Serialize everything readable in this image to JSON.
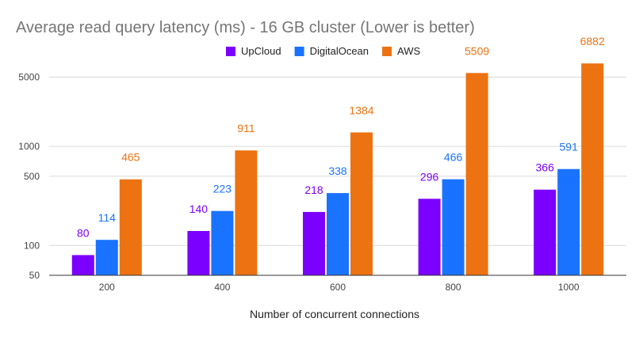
{
  "chart_data": {
    "type": "bar",
    "title": "Average read query latency (ms) - 16 GB cluster (Lower is better)",
    "xlabel": "Number of concurrent connections",
    "ylabel": "",
    "y_scale": "log",
    "ylim": [
      50,
      8000
    ],
    "y_ticks": [
      50,
      100,
      500,
      1000,
      5000
    ],
    "y_tick_labels": [
      "50",
      "100",
      "500",
      "1000",
      "5000"
    ],
    "grid": true,
    "legend_position": "top-center",
    "categories": [
      "200",
      "400",
      "600",
      "800",
      "1000"
    ],
    "series": [
      {
        "name": "UpCloud",
        "color": "#7b00ff",
        "values": [
          80,
          140,
          218,
          296,
          366
        ],
        "labels": [
          "80",
          "140",
          "218",
          "296",
          "366"
        ]
      },
      {
        "name": "DigitalOcean",
        "color": "#1a73ff",
        "values": [
          114,
          223,
          338,
          466,
          591
        ],
        "labels": [
          "114",
          "223",
          "338",
          "466",
          "591"
        ]
      },
      {
        "name": "AWS",
        "color": "#ed7211",
        "values": [
          465,
          911,
          1384,
          5509,
          6882
        ],
        "labels": [
          "465",
          "911",
          "1384",
          "5509",
          "6882"
        ]
      }
    ]
  }
}
